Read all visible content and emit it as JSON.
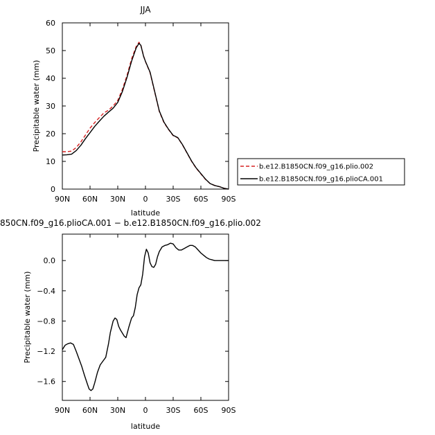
{
  "chart_data": [
    {
      "type": "line",
      "title": "JJA",
      "xlabel": "latitude",
      "ylabel": "Precipitable water (mm)",
      "xlim": [
        90,
        -90
      ],
      "ylim": [
        0,
        60
      ],
      "xticks": [
        90,
        60,
        30,
        0,
        -30,
        -60,
        -90
      ],
      "xticklabels": [
        "90N",
        "60N",
        "30N",
        "0",
        "30S",
        "60S",
        "90S"
      ],
      "yticks": [
        0,
        10,
        20,
        30,
        40,
        50,
        60
      ],
      "yticklabels": [
        "0",
        "10",
        "20",
        "30",
        "40",
        "50",
        "60"
      ],
      "legend": "right",
      "series": [
        {
          "name": "b.e12.B1850CN.f09_g16.plio.002",
          "color": "#d62020",
          "style": "dashed",
          "x": [
            90,
            85,
            80,
            75,
            70,
            65,
            60,
            55,
            50,
            45,
            40,
            35,
            30,
            25,
            20,
            15,
            10,
            7,
            5,
            2,
            0,
            -5,
            -10,
            -15,
            -20,
            -25,
            -30,
            -35,
            -40,
            -45,
            -50,
            -55,
            -60,
            -65,
            -70,
            -75,
            -80,
            -85,
            -90
          ],
          "y": [
            13.5,
            13.5,
            13.7,
            15.0,
            17.0,
            19.5,
            22.0,
            24.0,
            25.8,
            27.5,
            28.5,
            30.0,
            32.0,
            36.0,
            41.0,
            47.0,
            51.5,
            53.0,
            52.0,
            48.0,
            46.0,
            42.0,
            35.0,
            28.0,
            24.0,
            21.5,
            19.3,
            18.5,
            16.0,
            13.0,
            10.0,
            7.5,
            5.5,
            3.5,
            2.0,
            1.3,
            0.9,
            0.3,
            0.0
          ]
        },
        {
          "name": "b.e12.B1850CN.f09_g16.plioCA.001",
          "color": "#000000",
          "style": "solid",
          "x": [
            90,
            85,
            80,
            75,
            70,
            65,
            60,
            55,
            50,
            45,
            40,
            35,
            30,
            25,
            20,
            15,
            10,
            7,
            5,
            2,
            0,
            -5,
            -10,
            -15,
            -20,
            -25,
            -30,
            -35,
            -40,
            -45,
            -50,
            -55,
            -60,
            -65,
            -70,
            -75,
            -80,
            -85,
            -90
          ],
          "y": [
            12.3,
            12.4,
            12.6,
            13.9,
            15.8,
            18.2,
            20.4,
            22.6,
            24.5,
            26.3,
            27.8,
            29.2,
            31.3,
            35.2,
            40.3,
            46.2,
            51.0,
            52.6,
            51.9,
            47.9,
            46.1,
            42.2,
            35.2,
            28.2,
            24.2,
            21.6,
            19.4,
            18.6,
            16.1,
            13.1,
            10.1,
            7.6,
            5.6,
            3.6,
            2.0,
            1.3,
            0.9,
            0.3,
            0.0
          ]
        }
      ]
    },
    {
      "type": "line",
      "title": "850CN.f09_g16.plioCA.001 − b.e12.B1850CN.f09_g16.plio.002",
      "xlabel": "latitude",
      "ylabel": "Precipitable water (mm)",
      "xlim": [
        90,
        -90
      ],
      "ylim": [
        -1.85,
        0.35
      ],
      "xticks": [
        90,
        60,
        30,
        0,
        -30,
        -60,
        -90
      ],
      "xticklabels": [
        "90N",
        "60N",
        "30N",
        "0",
        "30S",
        "60S",
        "90S"
      ],
      "yticks": [
        0.0,
        -0.4,
        -0.8,
        -1.2,
        -1.6
      ],
      "yticklabels": [
        "0.0",
        "−0.4",
        "−0.8",
        "−1.2",
        "−1.6"
      ],
      "series": [
        {
          "color": "#000000",
          "style": "solid",
          "x": [
            90,
            87,
            84,
            81,
            78,
            75,
            72,
            69,
            66,
            63,
            61,
            59,
            57,
            55,
            52,
            49,
            46,
            43,
            40,
            38,
            35,
            33,
            31,
            29,
            27,
            25,
            23,
            21,
            18,
            15,
            13,
            11,
            9,
            7,
            5,
            3,
            1,
            -1,
            -3,
            -5,
            -7,
            -9,
            -11,
            -13,
            -15,
            -18,
            -21,
            -24,
            -27,
            -30,
            -33,
            -36,
            -39,
            -42,
            -45,
            -48,
            -51,
            -54,
            -57,
            -60,
            -63,
            -66,
            -69,
            -72,
            -75,
            -78,
            -81,
            -84,
            -87,
            -90
          ],
          "y": [
            -1.18,
            -1.12,
            -1.1,
            -1.09,
            -1.11,
            -1.2,
            -1.3,
            -1.4,
            -1.52,
            -1.63,
            -1.7,
            -1.72,
            -1.7,
            -1.62,
            -1.48,
            -1.38,
            -1.33,
            -1.28,
            -1.1,
            -0.95,
            -0.8,
            -0.76,
            -0.78,
            -0.87,
            -0.92,
            -0.96,
            -1.0,
            -1.02,
            -0.88,
            -0.76,
            -0.73,
            -0.62,
            -0.45,
            -0.36,
            -0.32,
            -0.18,
            0.05,
            0.15,
            0.1,
            -0.03,
            -0.08,
            -0.09,
            -0.05,
            0.05,
            0.12,
            0.18,
            0.2,
            0.21,
            0.23,
            0.22,
            0.17,
            0.14,
            0.14,
            0.16,
            0.18,
            0.2,
            0.2,
            0.18,
            0.14,
            0.1,
            0.07,
            0.04,
            0.02,
            0.01,
            0.0,
            0.0,
            0.0,
            0.0,
            0.0,
            0.0
          ]
        }
      ]
    }
  ]
}
